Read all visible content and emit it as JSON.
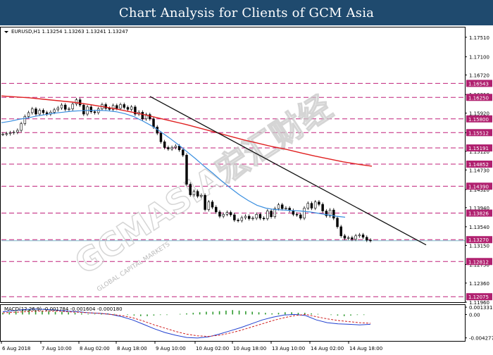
{
  "header": {
    "title": "Chart Analysis for Clients of GCM Asia"
  },
  "watermark": {
    "text": "GCMASIA宏汇财经",
    "subtext": "GLOBAL CAPITAL MARKETS"
  },
  "chart_data": [
    {
      "type": "candlestick",
      "symbol_label": "EURUSD,H1  1.13254 1.13263 1.13241 1.13247",
      "x_labels": [
        "6 Aug 2018",
        "7 Aug 10:00",
        "8 Aug 02:00",
        "8 Aug 18:00",
        "9 Aug 10:00",
        "10 Aug 02:00",
        "10 Aug 18:00",
        "13 Aug 10:00",
        "14 Aug 02:00",
        "14 Aug 18:00"
      ],
      "y_ticks": [
        "1.17510",
        "1.17100",
        "1.16720",
        "1.16310",
        "1.15920",
        "1.15510",
        "1.15120",
        "1.14730",
        "1.14320",
        "1.13940",
        "1.13540",
        "1.13150",
        "1.12750",
        "1.12360",
        "1.11960"
      ],
      "ylim": [
        1.1196,
        1.177
      ],
      "levels": [
        {
          "value": 1.16543,
          "label": "1.16543"
        },
        {
          "value": 1.1625,
          "label": "1.16250"
        },
        {
          "value": 1.158,
          "label": "1.15800"
        },
        {
          "value": 1.15512,
          "label": "1.15512"
        },
        {
          "value": 1.15191,
          "label": "1.15191"
        },
        {
          "value": 1.14852,
          "label": "1.14852"
        },
        {
          "value": 1.1439,
          "label": "1.14390"
        },
        {
          "value": 1.13826,
          "label": "1.13826"
        },
        {
          "value": 1.1327,
          "label": "1.13270"
        },
        {
          "value": 1.12812,
          "label": "1.12812"
        },
        {
          "value": 1.12075,
          "label": "1.12075"
        }
      ],
      "current_price": 1.13247,
      "close_series": [
        1.1548,
        1.1549,
        1.1551,
        1.1552,
        1.1556,
        1.157,
        1.1585,
        1.1593,
        1.1601,
        1.159,
        1.1598,
        1.1593,
        1.159,
        1.1594,
        1.1599,
        1.1603,
        1.1609,
        1.16,
        1.1601,
        1.1611,
        1.162,
        1.1609,
        1.159,
        1.1605,
        1.1595,
        1.1593,
        1.1601,
        1.161,
        1.1602,
        1.16,
        1.1608,
        1.1602,
        1.161,
        1.1604,
        1.16,
        1.1605,
        1.159,
        1.1594,
        1.158,
        1.1589,
        1.158,
        1.1563,
        1.155,
        1.1532,
        1.152,
        1.1517,
        1.152,
        1.1523,
        1.1515,
        1.1504,
        1.1443,
        1.1421,
        1.1428,
        1.1418,
        1.142,
        1.139,
        1.1406,
        1.1395,
        1.1385,
        1.1376,
        1.138,
        1.1384,
        1.1379,
        1.1368,
        1.1367,
        1.1373,
        1.1376,
        1.1371,
        1.1372,
        1.138,
        1.1372,
        1.1371,
        1.1387,
        1.1375,
        1.1392,
        1.14,
        1.1392,
        1.1393,
        1.1388,
        1.138,
        1.1379,
        1.1372,
        1.1393,
        1.1403,
        1.1393,
        1.1406,
        1.1401,
        1.1387,
        1.1377,
        1.1389,
        1.1372,
        1.1354,
        1.1335,
        1.133,
        1.1331,
        1.1328,
        1.1335,
        1.1337,
        1.1332,
        1.1326,
        1.1325
      ],
      "moving_averages": [
        {
          "name": "MA fast",
          "color": "#3a8fe0",
          "values": [
            1.1572,
            1.1575,
            1.1579,
            1.1582,
            1.1586,
            1.1589,
            1.1592,
            1.1594,
            1.1596,
            1.1597,
            1.1598,
            1.1598,
            1.1597,
            1.1595,
            1.1591,
            1.1585,
            1.1576,
            1.1566,
            1.1554,
            1.1541,
            1.1527,
            1.1512,
            1.1497,
            1.1481,
            1.1466,
            1.145,
            1.1435,
            1.1421,
            1.1409,
            1.1399,
            1.1393,
            1.139,
            1.1389,
            1.1388,
            1.1387,
            1.1385,
            1.1382,
            1.1379,
            1.1376,
            1.1374
          ]
        },
        {
          "name": "MA slow",
          "color": "#e02020",
          "values": [
            1.1628,
            1.1626,
            1.1624,
            1.1621,
            1.1618,
            1.1615,
            1.1611,
            1.1606,
            1.1601,
            1.1595,
            1.1589,
            1.1582,
            1.1575,
            1.1568,
            1.156,
            1.1552,
            1.1544,
            1.1536,
            1.1529,
            1.1522,
            1.1516,
            1.1509,
            1.1502,
            1.1496,
            1.149,
            1.1485,
            1.1481
          ]
        }
      ],
      "trendline": {
        "from": 1.1627,
        "to": 1.1316,
        "color": "#111111"
      }
    },
    {
      "type": "line",
      "label": "MACD(12,26,9) -0.001784 -0.001604 -0.000180",
      "y_ticks": [
        "0.001331",
        "0.00",
        "-0.004277"
      ],
      "ylim": [
        -0.0047,
        0.0016
      ],
      "histogram": [
        0.0003,
        0.0004,
        0.0006,
        0.0008,
        0.0009,
        0.0008,
        0.0007,
        0.0006,
        0.0005,
        0.0005,
        0.0004,
        0.0003,
        0.0002,
        0.0001,
        0.0001,
        0.0002,
        0.0002,
        0.0001,
        0.0,
        -0.0001,
        -0.0002,
        -0.0003,
        -0.0003,
        -0.0002,
        -0.0001,
        -0.0001,
        0.0,
        0.0001,
        0.0002,
        0.0003,
        0.0004,
        0.0005,
        0.0005,
        0.0006,
        0.0007,
        0.0008,
        0.0007,
        0.0006,
        0.0005,
        0.0004,
        0.0003,
        0.0002,
        0.0003,
        0.0004,
        0.0004,
        0.0003,
        0.0003,
        0.0002,
        0.0001,
        0.0,
        -0.0001,
        -0.0002,
        -0.0003,
        -0.0002,
        -0.0001,
        -0.0001,
        0.0
      ],
      "series": [
        {
          "color": "#2040d0",
          "values": [
            0.0005,
            0.0007,
            0.0009,
            0.001,
            0.0009,
            0.0008,
            0.0006,
            0.0005,
            0.0003,
            0.0002,
            0.0,
            -0.0004,
            -0.001,
            -0.0018,
            -0.0026,
            -0.0033,
            -0.0038,
            -0.0042,
            -0.0043,
            -0.0041,
            -0.0036,
            -0.003,
            -0.0024,
            -0.0017,
            -0.001,
            -0.0005,
            -0.0001,
            0.0,
            -0.0002,
            -0.001,
            -0.0015,
            -0.0017,
            -0.0018,
            -0.0019,
            -0.0018
          ]
        },
        {
          "color": "#d02020",
          "dashed": true,
          "values": [
            0.0003,
            0.0004,
            0.0005,
            0.0006,
            0.0006,
            0.0006,
            0.0005,
            0.0004,
            0.0003,
            0.0002,
            0.0,
            -0.0002,
            -0.0006,
            -0.0012,
            -0.0019,
            -0.0025,
            -0.0031,
            -0.0036,
            -0.0039,
            -0.004,
            -0.0038,
            -0.0034,
            -0.0029,
            -0.0023,
            -0.0017,
            -0.0011,
            -0.0006,
            -0.0002,
            0.0,
            -0.0004,
            -0.0008,
            -0.0011,
            -0.0013,
            -0.0015,
            -0.0016
          ]
        }
      ]
    }
  ]
}
